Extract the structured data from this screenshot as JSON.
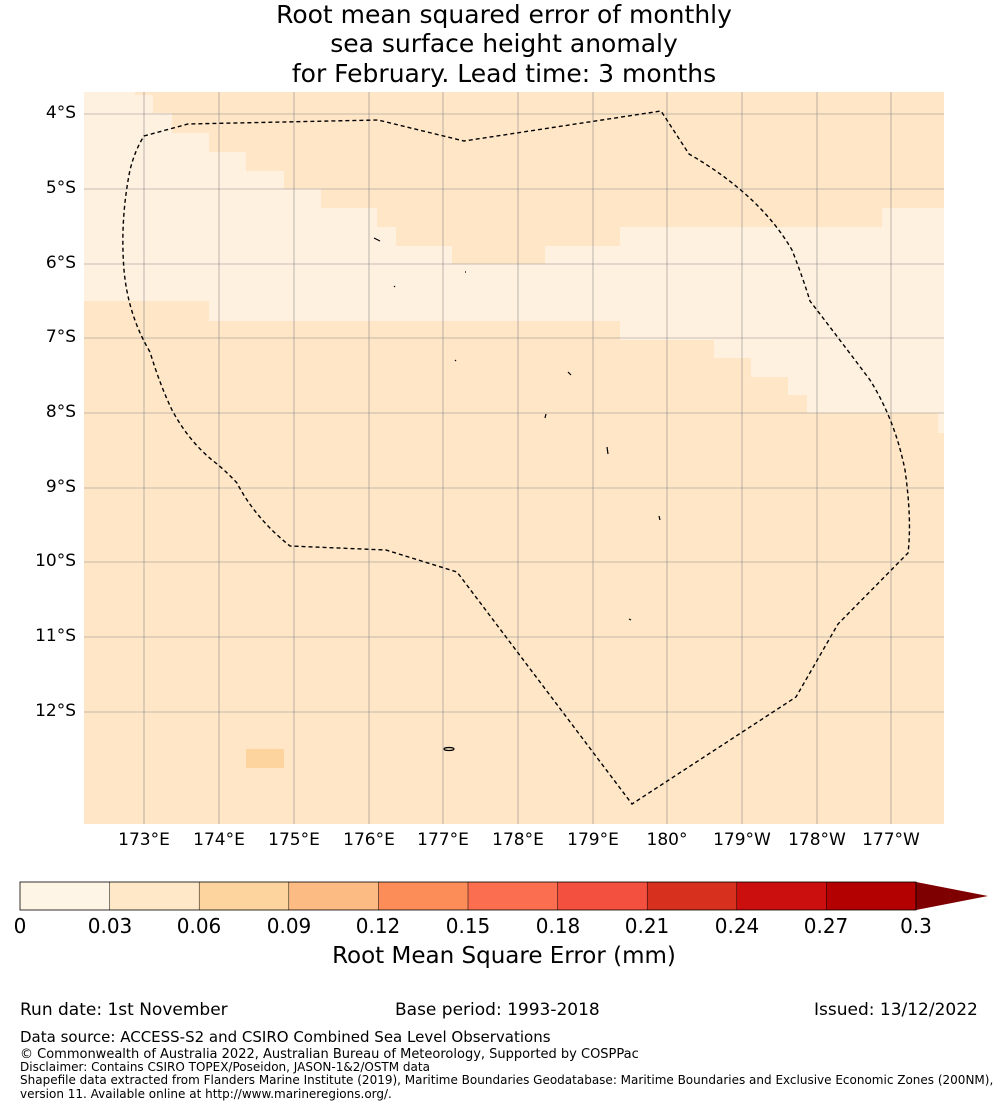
{
  "title": {
    "line1": "Root mean squared error of monthly",
    "line2": "sea surface height anomaly",
    "line3": "for February. Lead time: 3 months"
  },
  "map": {
    "lat_labels": [
      "4°S",
      "5°S",
      "6°S",
      "7°S",
      "8°S",
      "9°S",
      "10°S",
      "11°S",
      "12°S"
    ],
    "lon_labels": [
      "173°E",
      "174°E",
      "175°E",
      "176°E",
      "177°E",
      "178°E",
      "179°E",
      "180°",
      "179°W",
      "178°W",
      "177°W"
    ],
    "colors": {
      "bin_0_003": "#fff1df",
      "bin_003_006": "#fee6c7",
      "bin_006_009": "#fdd49e",
      "eez_boundary": "#000000",
      "grid": "#8a8a8a"
    }
  },
  "colorbar": {
    "label": "Root Mean Square Error (mm)",
    "ticks": [
      "0",
      "0.03",
      "0.06",
      "0.09",
      "0.12",
      "0.15",
      "0.18",
      "0.21",
      "0.24",
      "0.27",
      "0.3"
    ],
    "colors": [
      "#fff5e7",
      "#fee8c8",
      "#fdd49e",
      "#fdbb84",
      "#fc8d59",
      "#fc6e50",
      "#f4503f",
      "#d7301f",
      "#cb0f0f",
      "#b30000",
      "#7f0000"
    ],
    "extend": "max"
  },
  "footer": {
    "run_date": "Run date: 1st November",
    "base_period": "Base period: 1993-2018",
    "issued": "Issued: 13/12/2022",
    "data_source": "Data source: ACCESS-S2 and CSIRO Combined Sea Level Observations",
    "copyright": "© Commonwealth of Australia 2022, Australian Bureau of Meteorology, Supported by COSPPac",
    "disclaimer": "Disclaimer: Contains CSIRO TOPEX/Poseidon, JASON-1&2/OSTM data",
    "shapefile_line1": "Shapefile data extracted from Flanders Marine Institute (2019), Maritime Boundaries Geodatabase: Maritime Boundaries and Exclusive Economic Zones (200NM),",
    "shapefile_line2": "version 11. Available online at http://www.marineregions.org/."
  }
}
